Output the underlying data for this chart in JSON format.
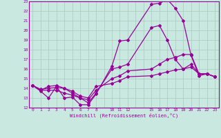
{
  "xlabel": "Windchill (Refroidissement éolien,°C)",
  "bg_color": "#c8e8e0",
  "grid_color": "#aac8c0",
  "line_color": "#990099",
  "xlim": [
    -0.5,
    23.5
  ],
  "ylim": [
    12,
    23
  ],
  "xtick_vals": [
    0,
    1,
    2,
    3,
    4,
    5,
    6,
    7,
    8,
    10,
    11,
    12,
    15,
    16,
    17,
    18,
    19,
    20,
    21,
    22,
    23
  ],
  "ytick_vals": [
    12,
    13,
    14,
    15,
    16,
    17,
    18,
    19,
    20,
    21,
    22,
    23
  ],
  "grid_x": [
    0,
    1,
    2,
    3,
    4,
    5,
    6,
    7,
    8,
    9,
    10,
    11,
    12,
    13,
    14,
    15,
    16,
    17,
    18,
    19,
    20,
    21,
    22,
    23
  ],
  "grid_y": [
    12,
    13,
    14,
    15,
    16,
    17,
    18,
    19,
    20,
    21,
    22,
    23
  ],
  "series": [
    {
      "x": [
        0,
        1,
        2,
        3,
        4,
        5,
        6,
        7,
        8,
        10,
        11,
        12,
        15,
        16,
        17,
        18,
        19,
        20,
        21,
        22,
        23
      ],
      "y": [
        14.3,
        13.7,
        13.0,
        14.2,
        13.0,
        13.1,
        12.3,
        12.3,
        13.4,
        16.3,
        18.9,
        19.0,
        22.7,
        22.8,
        23.2,
        22.3,
        21.0,
        17.4,
        15.3,
        15.5,
        15.2
      ]
    },
    {
      "x": [
        0,
        1,
        2,
        3,
        4,
        5,
        6,
        7,
        8,
        10,
        11,
        12,
        15,
        16,
        17,
        18,
        19,
        20,
        21,
        22,
        23
      ],
      "y": [
        14.3,
        13.8,
        14.2,
        14.3,
        14.0,
        13.5,
        13.0,
        12.5,
        13.5,
        16.0,
        16.2,
        16.5,
        20.3,
        20.5,
        19.0,
        17.0,
        16.0,
        16.5,
        15.5,
        15.5,
        15.2
      ]
    },
    {
      "x": [
        0,
        1,
        2,
        3,
        4,
        5,
        6,
        7,
        8,
        10,
        11,
        12,
        15,
        16,
        17,
        18,
        19,
        20,
        21,
        22,
        23
      ],
      "y": [
        14.3,
        13.8,
        13.8,
        13.8,
        13.5,
        13.3,
        13.0,
        12.8,
        13.8,
        15.0,
        15.3,
        15.8,
        16.0,
        16.5,
        17.0,
        17.2,
        17.5,
        17.5,
        15.5,
        15.5,
        15.2
      ]
    },
    {
      "x": [
        0,
        1,
        2,
        3,
        4,
        5,
        6,
        7,
        8,
        10,
        11,
        12,
        15,
        16,
        17,
        18,
        19,
        20,
        21,
        22,
        23
      ],
      "y": [
        14.3,
        13.9,
        14.0,
        14.1,
        14.0,
        13.7,
        13.2,
        13.0,
        14.2,
        14.5,
        14.8,
        15.2,
        15.3,
        15.5,
        15.7,
        15.9,
        16.0,
        16.2,
        15.5,
        15.5,
        15.2
      ]
    }
  ]
}
